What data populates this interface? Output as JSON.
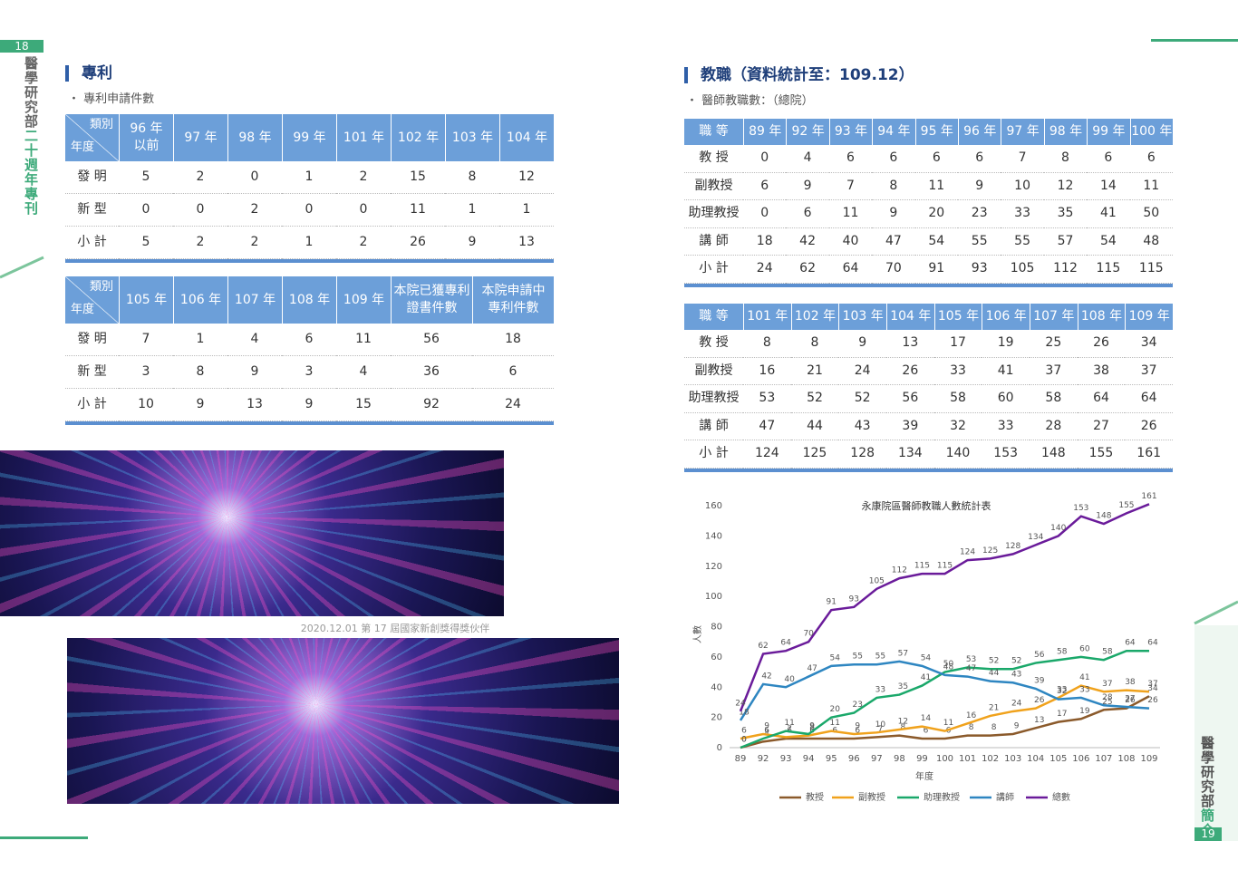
{
  "left_page": {
    "page_number": "18",
    "side_title_main": "醫學研究部",
    "side_title_accent": "二十週年專刊",
    "section_title": "專利",
    "subtitle": "專利申請件數",
    "tables": [
      {
        "corner_top": "類別",
        "corner_bottom": "年度",
        "columns": [
          "96 年\n以前",
          "97 年",
          "98 年",
          "99 年",
          "101 年",
          "102 年",
          "103 年",
          "104 年"
        ],
        "rows": [
          {
            "label": "發 明",
            "cells": [
              5,
              2,
              0,
              1,
              2,
              15,
              8,
              12
            ]
          },
          {
            "label": "新 型",
            "cells": [
              0,
              0,
              2,
              0,
              0,
              11,
              1,
              1
            ]
          },
          {
            "label": "小 計",
            "cells": [
              5,
              2,
              2,
              1,
              2,
              26,
              9,
              13
            ]
          }
        ]
      },
      {
        "corner_top": "類別",
        "corner_bottom": "年度",
        "columns": [
          "105 年",
          "106 年",
          "107 年",
          "108 年",
          "109 年",
          "本院已獲專利\n證書件數",
          "本院申請中\n專利件數"
        ],
        "rows": [
          {
            "label": "發 明",
            "cells": [
              7,
              1,
              4,
              6,
              11,
              56,
              18
            ]
          },
          {
            "label": "新 型",
            "cells": [
              3,
              8,
              9,
              3,
              4,
              36,
              6
            ]
          },
          {
            "label": "小 計",
            "cells": [
              10,
              9,
              13,
              9,
              15,
              92,
              24
            ]
          }
        ]
      }
    ],
    "photo_caption": "2020.12.01 第 17 屆國家新創獎得獎伙伴"
  },
  "right_page": {
    "page_number": "19",
    "side_title_main": "醫學研究部",
    "side_title_accent": "簡介",
    "section_title": "教職（資料統計至：109.12）",
    "subtitle": "醫師教職數：（總院）",
    "tables": [
      {
        "header_label": "職 等",
        "columns": [
          "89 年",
          "92 年",
          "93 年",
          "94 年",
          "95 年",
          "96 年",
          "97 年",
          "98 年",
          "99 年",
          "100 年"
        ],
        "rows": [
          {
            "label": "教 授",
            "cells": [
              0,
              4,
              6,
              6,
              6,
              6,
              7,
              8,
              6,
              6
            ]
          },
          {
            "label": "副教授",
            "cells": [
              6,
              9,
              7,
              8,
              11,
              9,
              10,
              12,
              14,
              11
            ]
          },
          {
            "label": "助理教授",
            "cells": [
              0,
              6,
              11,
              9,
              20,
              23,
              33,
              35,
              41,
              50
            ]
          },
          {
            "label": "講 師",
            "cells": [
              18,
              42,
              40,
              47,
              54,
              55,
              55,
              57,
              54,
              48
            ]
          },
          {
            "label": "小 計",
            "cells": [
              24,
              62,
              64,
              70,
              91,
              93,
              105,
              112,
              115,
              115
            ]
          }
        ]
      },
      {
        "header_label": "職 等",
        "columns": [
          "101 年",
          "102 年",
          "103 年",
          "104 年",
          "105 年",
          "106 年",
          "107 年",
          "108 年",
          "109 年"
        ],
        "rows": [
          {
            "label": "教 授",
            "cells": [
              8,
              8,
              9,
              13,
              17,
              19,
              25,
              26,
              34
            ]
          },
          {
            "label": "副教授",
            "cells": [
              16,
              21,
              24,
              26,
              33,
              41,
              37,
              38,
              37
            ]
          },
          {
            "label": "助理教授",
            "cells": [
              53,
              52,
              52,
              56,
              58,
              60,
              58,
              64,
              64
            ]
          },
          {
            "label": "講 師",
            "cells": [
              47,
              44,
              43,
              39,
              32,
              33,
              28,
              27,
              26
            ]
          },
          {
            "label": "小 計",
            "cells": [
              124,
              125,
              128,
              134,
              140,
              153,
              148,
              155,
              161
            ]
          }
        ]
      }
    ]
  },
  "chart_data": {
    "type": "line",
    "title": "永康院區醫師教職人數統計表",
    "x_label": "年度",
    "y_label": "人數",
    "categories": [
      "89",
      "92",
      "93",
      "94",
      "95",
      "96",
      "97",
      "98",
      "99",
      "100",
      "101",
      "102",
      "103",
      "104",
      "105",
      "106",
      "107",
      "108",
      "109"
    ],
    "ylim": [
      0,
      160
    ],
    "yticks": [
      0,
      20,
      40,
      60,
      80,
      100,
      120,
      140,
      160
    ],
    "grid": false,
    "legend": "bottom",
    "series": [
      {
        "name": "教授",
        "color": "#8b5a2b",
        "values": [
          0,
          4,
          6,
          6,
          6,
          6,
          7,
          8,
          6,
          6,
          8,
          8,
          9,
          13,
          17,
          19,
          25,
          26,
          34
        ]
      },
      {
        "name": "副教授",
        "color": "#f0a21c",
        "values": [
          6,
          9,
          7,
          8,
          11,
          9,
          10,
          12,
          14,
          11,
          16,
          21,
          24,
          26,
          33,
          41,
          37,
          38,
          37
        ]
      },
      {
        "name": "助理教授",
        "color": "#1aa86a",
        "values": [
          0,
          6,
          11,
          9,
          20,
          23,
          33,
          35,
          41,
          50,
          53,
          52,
          52,
          56,
          58,
          60,
          58,
          64,
          64
        ]
      },
      {
        "name": "講師",
        "color": "#2e86c1",
        "values": [
          18,
          42,
          40,
          47,
          54,
          55,
          55,
          57,
          54,
          48,
          47,
          44,
          43,
          39,
          32,
          33,
          28,
          27,
          26
        ]
      },
      {
        "name": "總數",
        "color": "#6a1b9a",
        "values": [
          24,
          62,
          64,
          70,
          91,
          93,
          105,
          112,
          115,
          115,
          124,
          125,
          128,
          134,
          140,
          153,
          148,
          155,
          161
        ]
      }
    ]
  }
}
